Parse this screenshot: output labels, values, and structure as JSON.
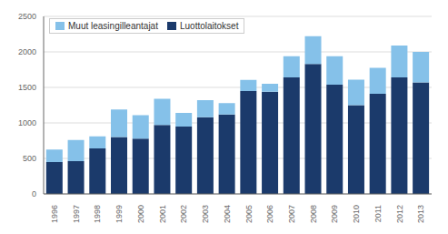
{
  "chart_data": {
    "type": "bar",
    "stacked": true,
    "categories": [
      "1996",
      "1997",
      "1998",
      "1999",
      "2000",
      "2001",
      "2002",
      "2003",
      "2004",
      "2005",
      "2006",
      "2007",
      "2008",
      "2009",
      "2010",
      "2011",
      "2012",
      "2013"
    ],
    "series": [
      {
        "name": "Luottolaitokset",
        "color": "#1B3A6B",
        "values": [
          450,
          460,
          640,
          800,
          780,
          970,
          950,
          1080,
          1120,
          1450,
          1440,
          1640,
          1830,
          1540,
          1250,
          1410,
          1640,
          1570
        ]
      },
      {
        "name": "Muut leasingilleantajat",
        "color": "#85C1E9",
        "values": [
          175,
          300,
          170,
          390,
          330,
          370,
          190,
          240,
          160,
          155,
          110,
          300,
          390,
          400,
          360,
          365,
          450,
          430
        ]
      }
    ],
    "ylim": [
      0,
      2500
    ],
    "yticks": [
      0,
      500,
      1000,
      1500,
      2000,
      2500
    ],
    "grid": true,
    "legend": "upper left"
  }
}
